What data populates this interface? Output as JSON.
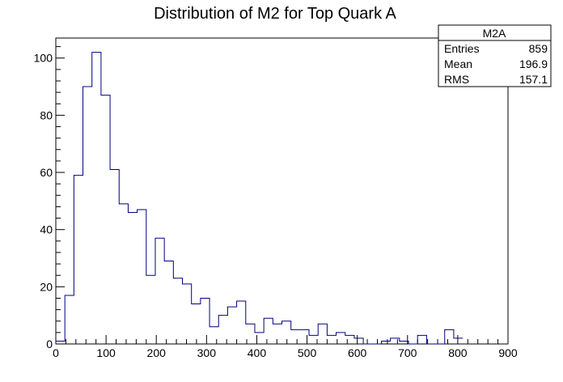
{
  "chart_data": {
    "type": "bar",
    "title": "Distribution of M2 for Top Quark A",
    "xlabel": "",
    "ylabel": "",
    "xlim": [
      0,
      900
    ],
    "ylim": [
      0,
      107
    ],
    "bin_width": 18,
    "bin_edges_start": 0,
    "values": [
      1,
      17,
      59,
      90,
      102,
      87,
      61,
      49,
      46,
      47,
      24,
      37,
      29,
      23,
      21,
      14,
      16,
      6,
      10,
      13,
      15,
      7,
      4,
      9,
      7,
      8,
      5,
      5,
      3,
      7,
      3,
      4,
      3,
      2,
      0,
      0,
      1,
      2,
      1,
      0,
      3,
      0,
      0,
      5,
      2
    ],
    "x_ticks": [
      0,
      100,
      200,
      300,
      400,
      500,
      600,
      700,
      800,
      900
    ],
    "y_ticks": [
      0,
      20,
      40,
      60,
      80,
      100
    ],
    "line_color": "#000080",
    "grid": false,
    "stats_box": {
      "title": "M2A",
      "rows": [
        {
          "label": "Entries",
          "value": "859"
        },
        {
          "label": "Mean",
          "value": "196.9"
        },
        {
          "label": "RMS",
          "value": "157.1"
        }
      ]
    }
  }
}
